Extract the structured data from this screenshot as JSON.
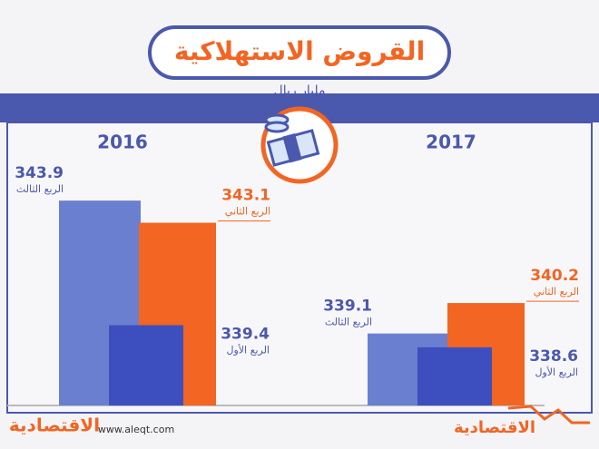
{
  "chart_data": {
    "type": "bar",
    "title": "القروض الاستهلاكية",
    "subtitle": "مليار ريال",
    "categories": [
      "2016",
      "2017"
    ],
    "series": [
      {
        "name": "الربع الثالث",
        "color": "#6b7fd1",
        "values": [
          343.9,
          339.1
        ]
      },
      {
        "name": "الربع الثاني",
        "color": "#f26522",
        "values": [
          343.1,
          340.2
        ]
      },
      {
        "name": "الربع الأول",
        "color": "#3d4fbf",
        "values": [
          339.4,
          338.6
        ]
      }
    ],
    "ylim": [
      336.5,
      344.2
    ],
    "footer": {
      "logo": "الاقتصادية",
      "url": "www.aleqt.com"
    }
  }
}
